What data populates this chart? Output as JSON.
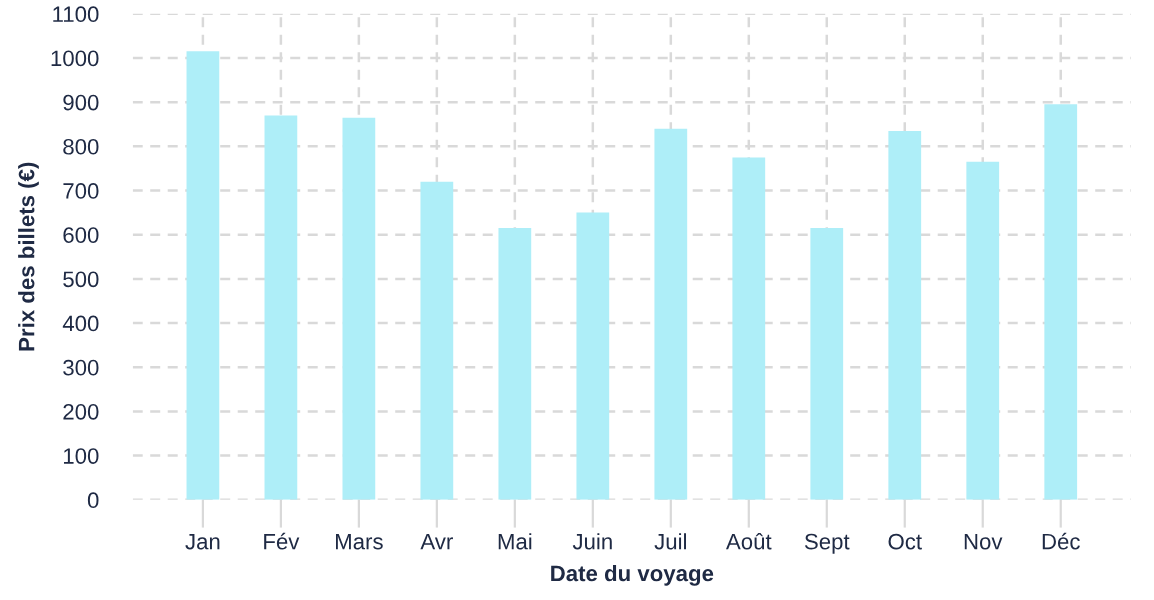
{
  "chart_data": {
    "type": "bar",
    "xlabel": "Date du voyage",
    "ylabel": "Prix des billets (€)",
    "categories": [
      "Jan",
      "Fév",
      "Mars",
      "Avr",
      "Mai",
      "Juin",
      "Juil",
      "Août",
      "Sept",
      "Oct",
      "Nov",
      "Déc"
    ],
    "values": [
      1015,
      870,
      865,
      720,
      615,
      650,
      840,
      775,
      615,
      835,
      765,
      895
    ],
    "color": "#aeeef8",
    "ylim": [
      0,
      1100
    ],
    "yticks": [
      0,
      100,
      200,
      300,
      400,
      500,
      600,
      700,
      800,
      900,
      1000,
      1100
    ],
    "grid": true
  }
}
